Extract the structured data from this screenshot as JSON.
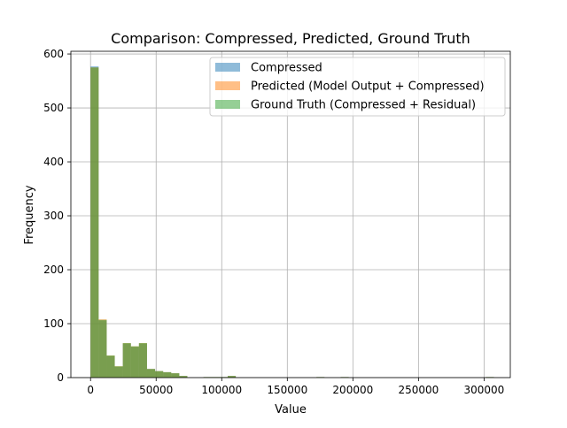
{
  "chart_data": {
    "type": "bar",
    "title": "Comparison: Compressed, Predicted, Ground Truth",
    "xlabel": "Value",
    "ylabel": "Frequency",
    "xlim": [
      -15000,
      320000
    ],
    "ylim": [
      0,
      605
    ],
    "x_ticks": [
      0,
      50000,
      100000,
      150000,
      200000,
      250000,
      300000
    ],
    "x_tick_labels": [
      "0",
      "50000",
      "100000",
      "150000",
      "200000",
      "250000",
      "300000"
    ],
    "y_ticks": [
      0,
      100,
      200,
      300,
      400,
      500,
      600
    ],
    "y_tick_labels": [
      "0",
      "100",
      "200",
      "300",
      "400",
      "500",
      "600"
    ],
    "grid": true,
    "legend_position": "top-right",
    "bin_start": 0,
    "bin_width": 6150,
    "series": [
      {
        "name": "Compressed",
        "color": "#1f77b4",
        "values": [
          577,
          106,
          40,
          20,
          63,
          57,
          63,
          16,
          12,
          10,
          8,
          3,
          0,
          0,
          1,
          1,
          1,
          3,
          0,
          0,
          0,
          0,
          0,
          0,
          0,
          0,
          0,
          0,
          1,
          0,
          0,
          1,
          0,
          0,
          0,
          0,
          0,
          0,
          0,
          0,
          0,
          0,
          0,
          0,
          0,
          0,
          0,
          0,
          0,
          1
        ]
      },
      {
        "name": "Predicted (Model Output + Compressed)",
        "color": "#ff7f0e",
        "values": [
          575,
          108,
          41,
          21,
          64,
          58,
          64,
          16,
          12,
          10,
          8,
          3,
          0,
          0,
          1,
          1,
          1,
          3,
          0,
          0,
          0,
          0,
          0,
          0,
          0,
          0,
          0,
          0,
          1,
          0,
          0,
          1,
          0,
          0,
          0,
          0,
          0,
          0,
          0,
          0,
          0,
          0,
          0,
          0,
          0,
          0,
          0,
          0,
          0,
          1
        ]
      },
      {
        "name": "Ground Truth (Compressed + Residual)",
        "color": "#2ca02c",
        "values": [
          575,
          107,
          41,
          21,
          64,
          58,
          64,
          16,
          12,
          10,
          8,
          3,
          0,
          0,
          1,
          1,
          1,
          3,
          0,
          0,
          0,
          0,
          0,
          0,
          0,
          0,
          0,
          0,
          1,
          0,
          0,
          1,
          0,
          0,
          0,
          0,
          0,
          0,
          0,
          0,
          0,
          0,
          0,
          0,
          0,
          0,
          0,
          0,
          0,
          1
        ]
      }
    ]
  }
}
